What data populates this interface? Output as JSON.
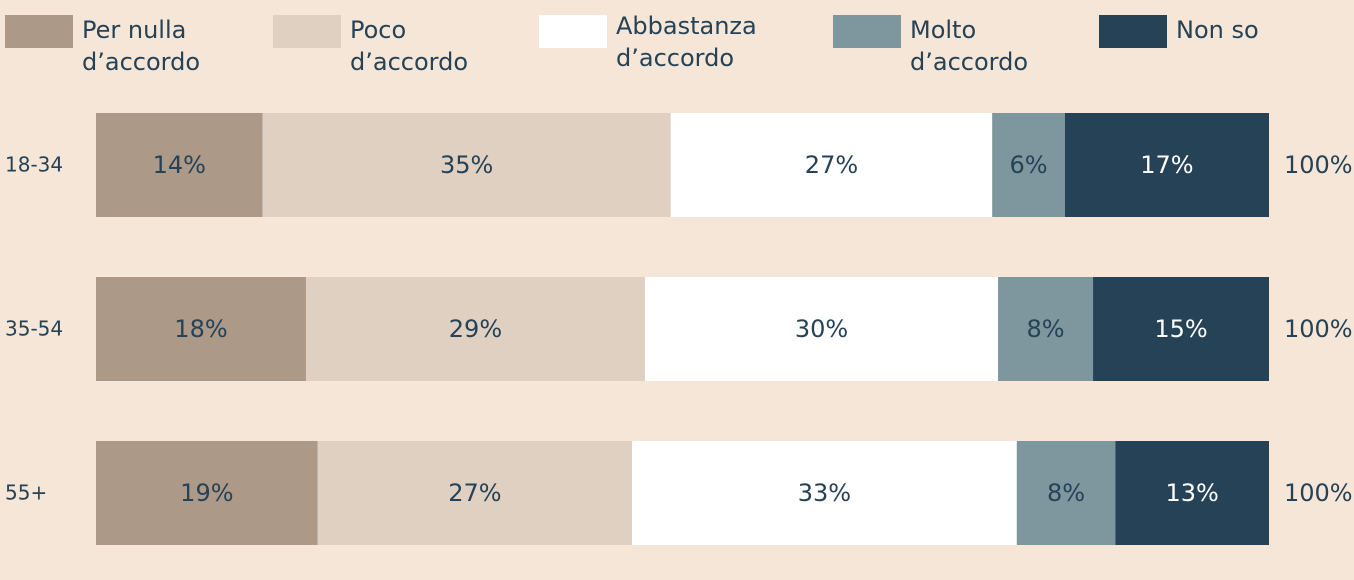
{
  "chart_data": {
    "type": "stacked_barh",
    "categories": [
      "18-34",
      "35-54",
      "55+"
    ],
    "series": [
      {
        "name": "Per nulla d’accordo",
        "color": "#ad9988",
        "values": [
          14.2,
          17.9,
          18.9
        ],
        "value_labels": [
          "14%",
          "18%",
          "19%"
        ]
      },
      {
        "name": "Poco d’accordo",
        "color": "#e0d0c1",
        "values": [
          34.8,
          28.9,
          26.8
        ],
        "value_labels": [
          "35%",
          "29%",
          "27%"
        ]
      },
      {
        "name": "Abbastanza d’accordo",
        "color": "#ffffff",
        "values": [
          27.4,
          30.1,
          32.8
        ],
        "value_labels": [
          "27%",
          "30%",
          "33%"
        ]
      },
      {
        "name": "Molto d’accordo",
        "color": "#7e979e",
        "values": [
          6.2,
          8.1,
          8.4
        ],
        "value_labels": [
          "6%",
          "8%",
          "8%"
        ]
      },
      {
        "name": "Non so",
        "color": "#254257",
        "values": [
          17.4,
          15.0,
          13.1
        ],
        "value_labels": [
          "17%",
          "15%",
          "13%"
        ]
      }
    ],
    "totals": [
      100,
      100,
      100
    ],
    "total_labels": [
      "100%",
      "100%",
      "100%"
    ],
    "xlim": [
      0,
      100
    ]
  }
}
